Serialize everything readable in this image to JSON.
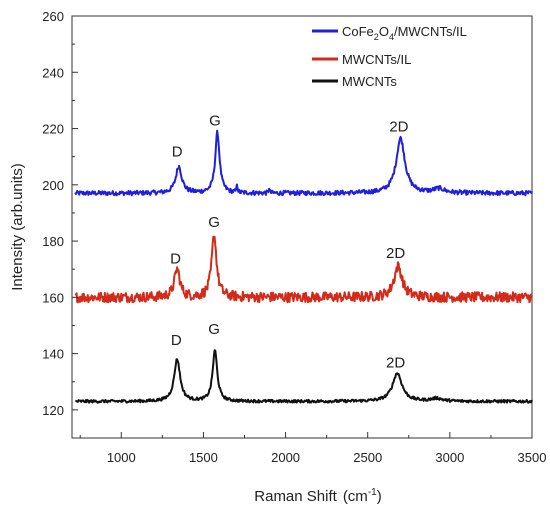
{
  "chart_data": {
    "type": "line",
    "xlabel": "Raman Shift",
    "xlabel_unit": "(cm",
    "xlabel_sup": "-1",
    "xlabel_close": ")",
    "ylabel": "Intensity (arb.units)",
    "xlim": [
      700,
      3500
    ],
    "ylim": [
      110,
      260
    ],
    "xticks": [
      1000,
      1500,
      2000,
      2500,
      3000,
      3500
    ],
    "yticks": [
      120,
      140,
      160,
      180,
      200,
      220,
      240,
      260
    ],
    "grid": false,
    "legend_position": "top-right",
    "series": [
      {
        "name": "CoFe2O4/MWCNTs/IL",
        "name_parts": [
          "CoFe",
          "2",
          "O",
          "4",
          "/MWCNTs/IL"
        ],
        "color": "#1f1fe0",
        "baseline": 197,
        "noise": 0.4,
        "peaks": [
          {
            "x": 1350,
            "y": 206.5,
            "width": 22
          },
          {
            "x": 1585,
            "y": 218.5,
            "width": 16
          },
          {
            "x": 1705,
            "y": 200.5,
            "width": 3
          },
          {
            "x": 1900,
            "y": 199,
            "width": 3
          },
          {
            "x": 2700,
            "y": 216.5,
            "width": 32
          },
          {
            "x": 2935,
            "y": 198.5,
            "width": 40
          }
        ]
      },
      {
        "name": "MWCNTs/IL",
        "name_parts": [
          "MWCNTs/IL"
        ],
        "color": "#d42a1a",
        "baseline": 160,
        "noise": 0.9,
        "peaks": [
          {
            "x": 1340,
            "y": 170,
            "width": 20
          },
          {
            "x": 1565,
            "y": 182,
            "width": 18
          },
          {
            "x": 2685,
            "y": 171,
            "width": 30
          }
        ]
      },
      {
        "name": "MWCNTs",
        "name_parts": [
          "MWCNTs"
        ],
        "color": "#111111",
        "baseline": 123,
        "noise": 0.25,
        "peaks": [
          {
            "x": 1340,
            "y": 138,
            "width": 22
          },
          {
            "x": 1570,
            "y": 141,
            "width": 17
          },
          {
            "x": 2680,
            "y": 133,
            "width": 35
          },
          {
            "x": 2920,
            "y": 124,
            "width": 40
          }
        ]
      }
    ],
    "annotations": [
      {
        "text": "D",
        "x": 1340,
        "y": 210
      },
      {
        "text": "G",
        "x": 1570,
        "y": 221
      },
      {
        "text": "2D",
        "x": 2690,
        "y": 219
      },
      {
        "text": "D",
        "x": 1330,
        "y": 172
      },
      {
        "text": "G",
        "x": 1565,
        "y": 185
      },
      {
        "text": "2D",
        "x": 2670,
        "y": 174
      },
      {
        "text": "D",
        "x": 1335,
        "y": 143
      },
      {
        "text": "G",
        "x": 1565,
        "y": 147
      },
      {
        "text": "2D",
        "x": 2670,
        "y": 135
      }
    ]
  }
}
